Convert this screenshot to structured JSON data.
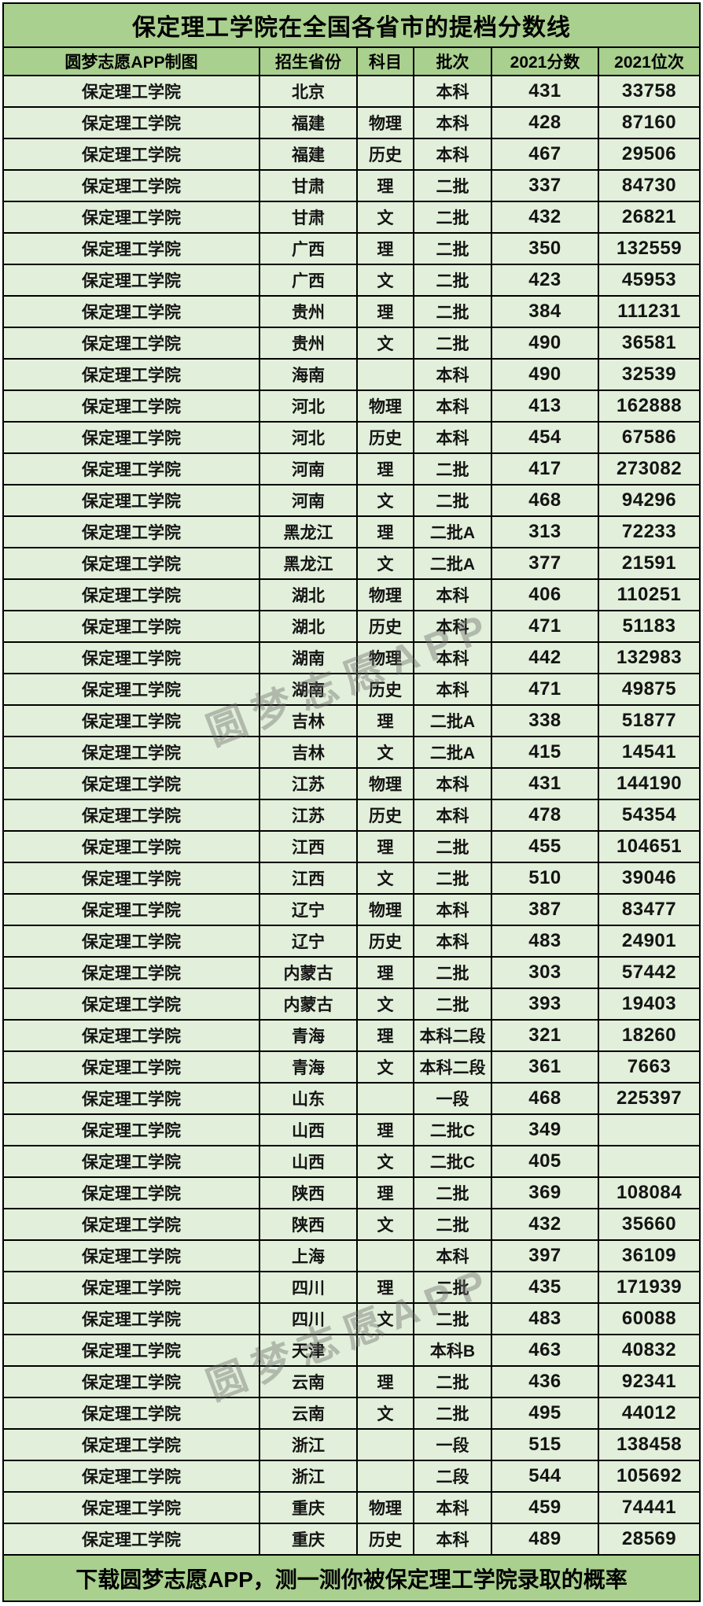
{
  "title": "保定理工学院在全国各省市的提档分数线",
  "school_name": "保定理工学院",
  "footer": "下载圆梦志愿APP，测一测你被保定理工学院录取的概率",
  "watermark_text": "圆梦志愿APP",
  "colors": {
    "band_green": "#a9d08e",
    "row_green": "#e2efda",
    "border": "#000000",
    "watermark_gray": "#6e6e6e"
  },
  "chart_data": {
    "type": "table",
    "title": "保定理工学院在全国各省市的提档分数线",
    "columns": [
      "圆梦志愿APP制图",
      "招生省份",
      "科目",
      "批次",
      "2021分数",
      "2021位次"
    ],
    "first_column_value": "保定理工学院",
    "rows": [
      [
        "北京",
        "",
        "本科",
        "431",
        "33758"
      ],
      [
        "福建",
        "物理",
        "本科",
        "428",
        "87160"
      ],
      [
        "福建",
        "历史",
        "本科",
        "467",
        "29506"
      ],
      [
        "甘肃",
        "理",
        "二批",
        "337",
        "84730"
      ],
      [
        "甘肃",
        "文",
        "二批",
        "432",
        "26821"
      ],
      [
        "广西",
        "理",
        "二批",
        "350",
        "132559"
      ],
      [
        "广西",
        "文",
        "二批",
        "423",
        "45953"
      ],
      [
        "贵州",
        "理",
        "二批",
        "384",
        "111231"
      ],
      [
        "贵州",
        "文",
        "二批",
        "490",
        "36581"
      ],
      [
        "海南",
        "",
        "本科",
        "490",
        "32539"
      ],
      [
        "河北",
        "物理",
        "本科",
        "413",
        "162888"
      ],
      [
        "河北",
        "历史",
        "本科",
        "454",
        "67586"
      ],
      [
        "河南",
        "理",
        "二批",
        "417",
        "273082"
      ],
      [
        "河南",
        "文",
        "二批",
        "468",
        "94296"
      ],
      [
        "黑龙江",
        "理",
        "二批A",
        "313",
        "72233"
      ],
      [
        "黑龙江",
        "文",
        "二批A",
        "377",
        "21591"
      ],
      [
        "湖北",
        "物理",
        "本科",
        "406",
        "110251"
      ],
      [
        "湖北",
        "历史",
        "本科",
        "471",
        "51183"
      ],
      [
        "湖南",
        "物理",
        "本科",
        "442",
        "132983"
      ],
      [
        "湖南",
        "历史",
        "本科",
        "471",
        "49875"
      ],
      [
        "吉林",
        "理",
        "二批A",
        "338",
        "51877"
      ],
      [
        "吉林",
        "文",
        "二批A",
        "415",
        "14541"
      ],
      [
        "江苏",
        "物理",
        "本科",
        "431",
        "144190"
      ],
      [
        "江苏",
        "历史",
        "本科",
        "478",
        "54354"
      ],
      [
        "江西",
        "理",
        "二批",
        "455",
        "104651"
      ],
      [
        "江西",
        "文",
        "二批",
        "510",
        "39046"
      ],
      [
        "辽宁",
        "物理",
        "本科",
        "387",
        "83477"
      ],
      [
        "辽宁",
        "历史",
        "本科",
        "483",
        "24901"
      ],
      [
        "内蒙古",
        "理",
        "二批",
        "303",
        "57442"
      ],
      [
        "内蒙古",
        "文",
        "二批",
        "393",
        "19403"
      ],
      [
        "青海",
        "理",
        "本科二段",
        "321",
        "18260"
      ],
      [
        "青海",
        "文",
        "本科二段",
        "361",
        "7663"
      ],
      [
        "山东",
        "",
        "一段",
        "468",
        "225397"
      ],
      [
        "山西",
        "理",
        "二批C",
        "349",
        ""
      ],
      [
        "山西",
        "文",
        "二批C",
        "405",
        ""
      ],
      [
        "陕西",
        "理",
        "二批",
        "369",
        "108084"
      ],
      [
        "陕西",
        "文",
        "二批",
        "432",
        "35660"
      ],
      [
        "上海",
        "",
        "本科",
        "397",
        "36109"
      ],
      [
        "四川",
        "理",
        "二批",
        "435",
        "171939"
      ],
      [
        "四川",
        "文",
        "二批",
        "483",
        "60088"
      ],
      [
        "天津",
        "",
        "本科B",
        "463",
        "40832"
      ],
      [
        "云南",
        "理",
        "二批",
        "436",
        "92341"
      ],
      [
        "云南",
        "文",
        "二批",
        "495",
        "44012"
      ],
      [
        "浙江",
        "",
        "一段",
        "515",
        "138458"
      ],
      [
        "浙江",
        "",
        "二段",
        "544",
        "105692"
      ],
      [
        "重庆",
        "物理",
        "本科",
        "459",
        "74441"
      ],
      [
        "重庆",
        "历史",
        "本科",
        "489",
        "28569"
      ]
    ]
  }
}
